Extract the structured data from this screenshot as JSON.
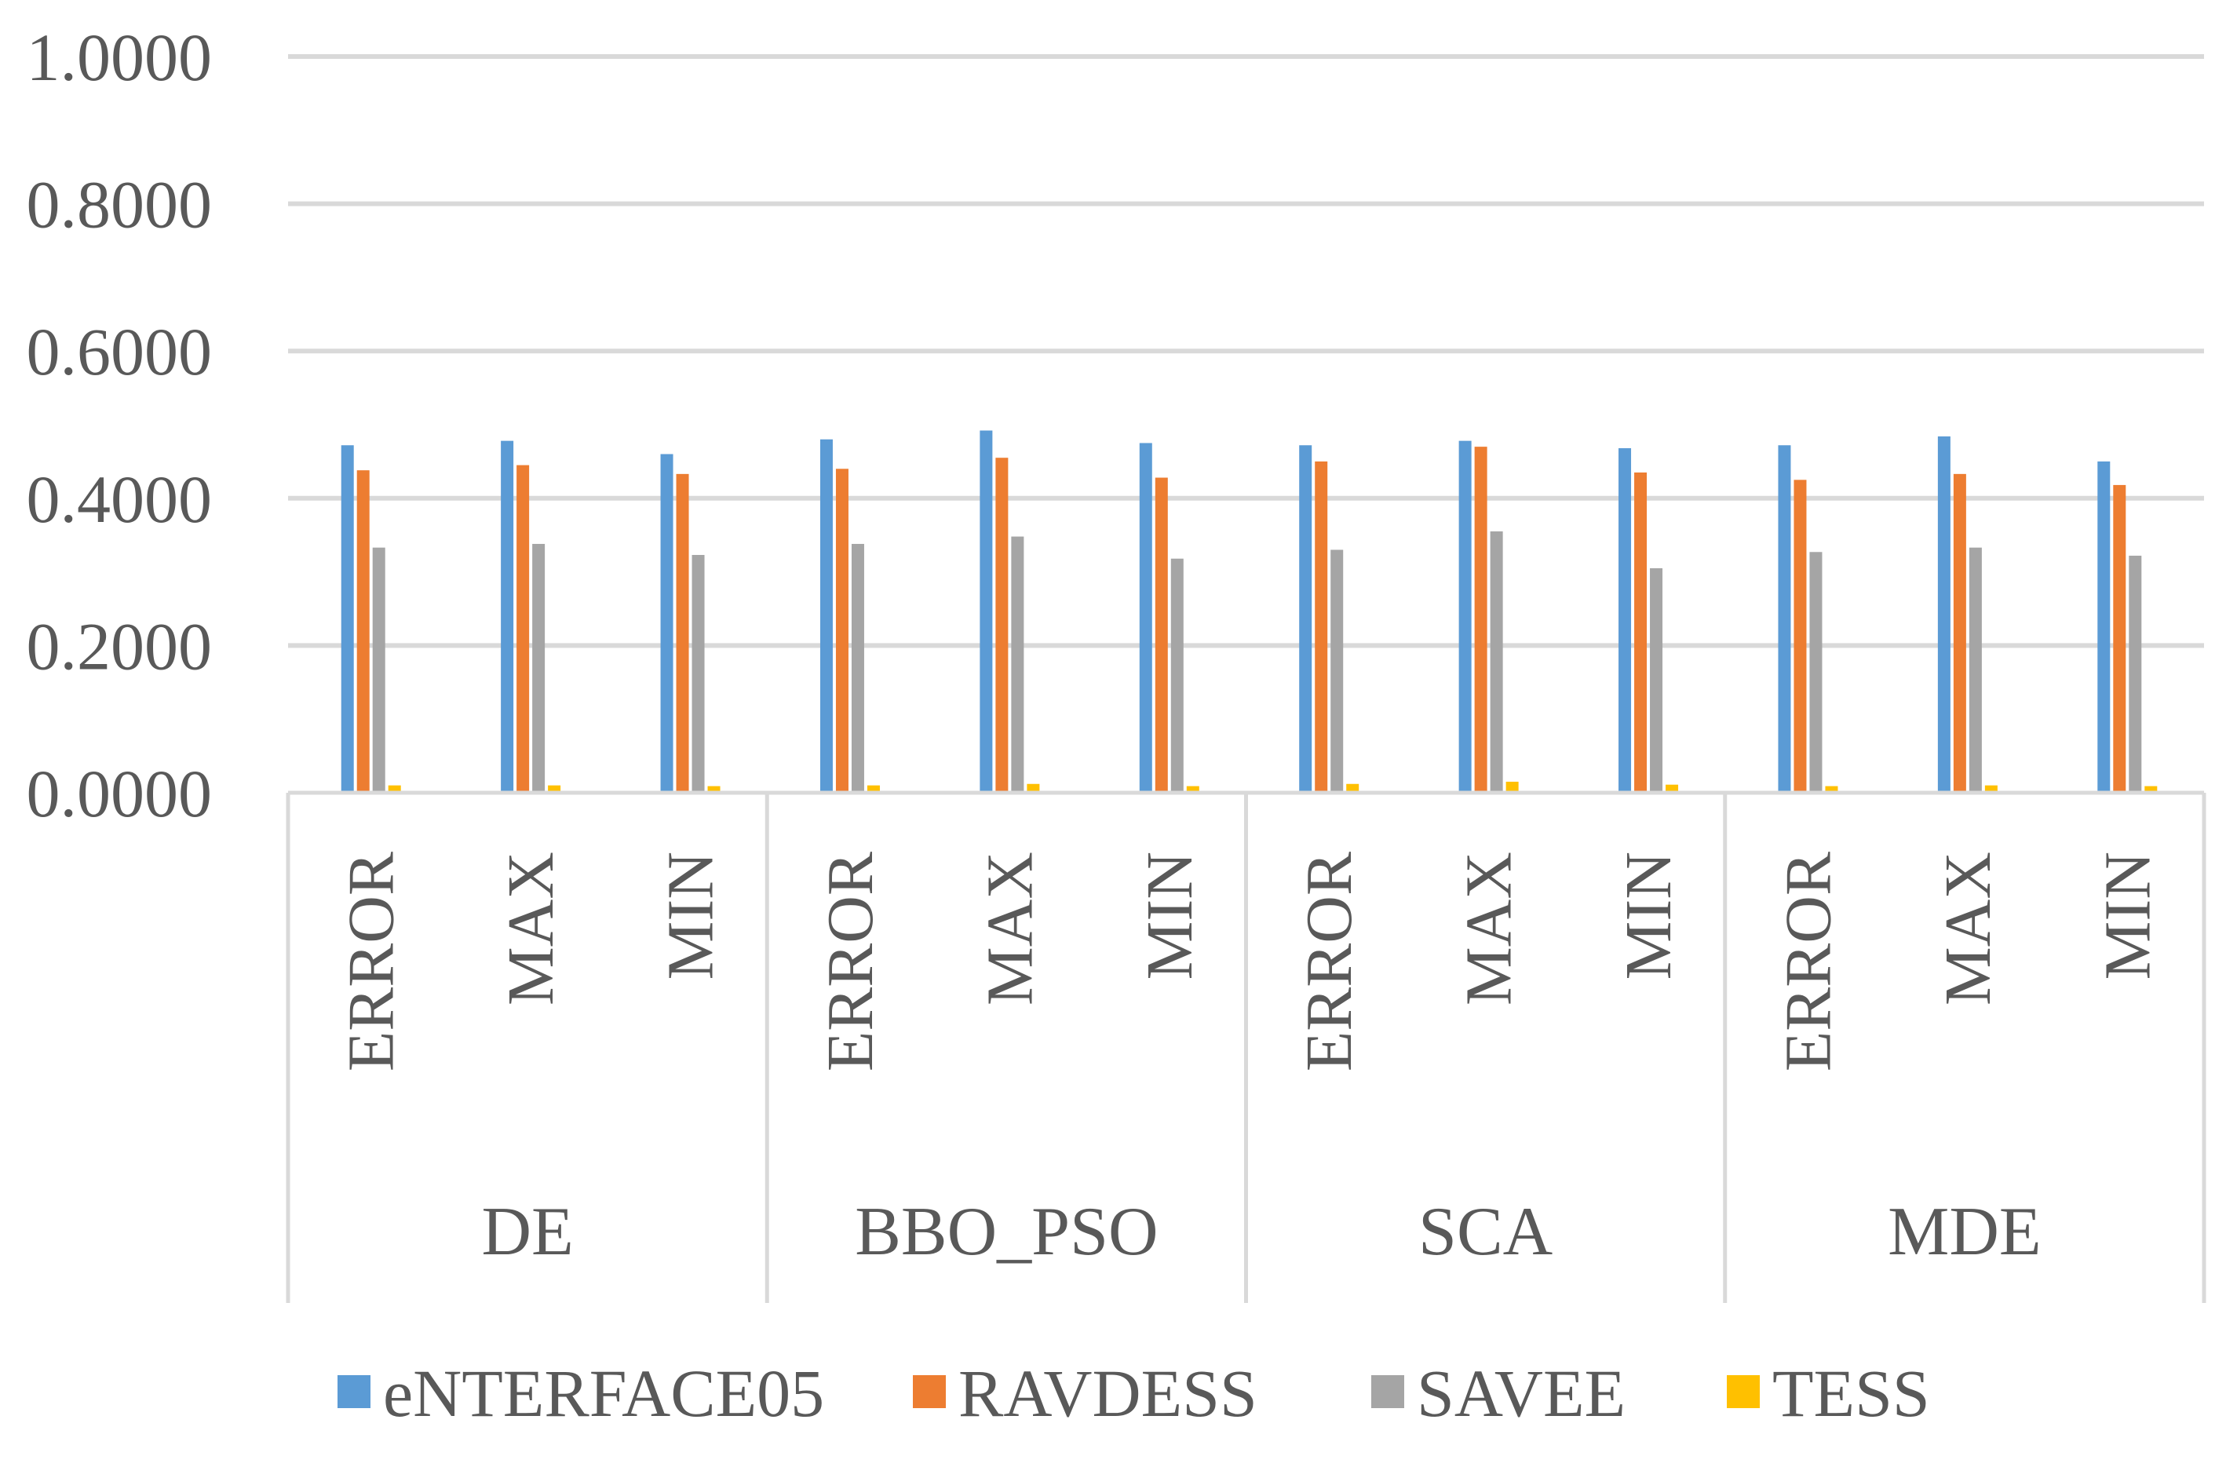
{
  "chart_data": {
    "type": "bar",
    "title": "",
    "xlabel": "",
    "ylabel": "",
    "ylim": [
      0,
      1
    ],
    "y_ticks": [
      "0.0000",
      "0.2000",
      "0.4000",
      "0.6000",
      "0.8000",
      "1.0000"
    ],
    "y_tick_values": [
      0,
      0.2,
      0.4,
      0.6,
      0.8,
      1.0
    ],
    "grid": true,
    "legend_position": "bottom",
    "groups": [
      {
        "name": "DE",
        "categories": [
          "ERROR",
          "MAX",
          "MIN"
        ]
      },
      {
        "name": "BBO_PSO",
        "categories": [
          "ERROR",
          "MAX",
          "MIN"
        ]
      },
      {
        "name": "SCA",
        "categories": [
          "ERROR",
          "MAX",
          "MIN"
        ]
      },
      {
        "name": "MDE",
        "categories": [
          "ERROR",
          "MAX",
          "MIN"
        ]
      }
    ],
    "series": [
      {
        "name": "eNTERFACE05",
        "color": "#5B9BD5",
        "values": [
          0.472,
          0.478,
          0.46,
          0.48,
          0.492,
          0.475,
          0.472,
          0.478,
          0.468,
          0.472,
          0.484,
          0.45
        ]
      },
      {
        "name": "RAVDESS",
        "color": "#ED7D31",
        "values": [
          0.438,
          0.445,
          0.433,
          0.44,
          0.455,
          0.428,
          0.45,
          0.47,
          0.435,
          0.425,
          0.433,
          0.418
        ]
      },
      {
        "name": "SAVEE",
        "color": "#A5A5A5",
        "values": [
          0.333,
          0.338,
          0.323,
          0.338,
          0.348,
          0.318,
          0.33,
          0.355,
          0.305,
          0.327,
          0.333,
          0.322
        ]
      },
      {
        "name": "TESS",
        "color": "#FFC000",
        "values": [
          0.01,
          0.01,
          0.009,
          0.01,
          0.012,
          0.009,
          0.012,
          0.015,
          0.011,
          0.009,
          0.01,
          0.009
        ]
      }
    ]
  }
}
